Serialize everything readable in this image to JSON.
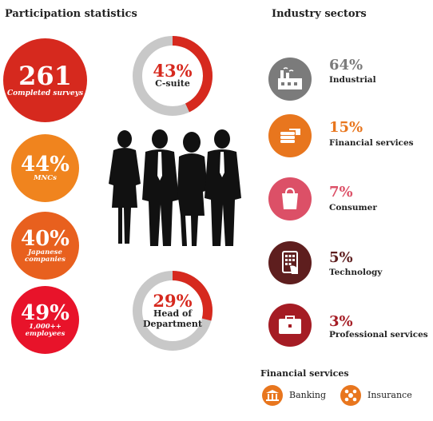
{
  "participation": {
    "title": "Participation statistics",
    "completed": {
      "value": "261",
      "label": "Completed surveys",
      "color": "#d6291e"
    },
    "mncs": {
      "value": "44%",
      "label": "MNCs",
      "color": "#f0841e"
    },
    "japanese": {
      "value": "40%",
      "label_line1": "Japanese",
      "label_line2": "companies",
      "color": "#e8601e"
    },
    "employees": {
      "value": "49%",
      "label_line1": "1,000++",
      "label_line2": "employees",
      "color": "#e8132a"
    },
    "csuite": {
      "value": "43%",
      "label": "C-suite",
      "fraction": 0.43
    },
    "head": {
      "value": "29%",
      "label_line1": "Head of",
      "label_line2": "Department",
      "fraction": 0.29
    }
  },
  "industry": {
    "title": "Industry sectors",
    "sectors": [
      {
        "pct": "64%",
        "name": "Industrial",
        "icon": "factory-icon",
        "color": "#7b7b7b",
        "pct_color": "#7b7b7b"
      },
      {
        "pct": "15%",
        "name": "Financial services",
        "icon": "coins-icon",
        "color": "#e8761e",
        "pct_color": "#e8761e"
      },
      {
        "pct": "7%",
        "name": "Consumer",
        "icon": "shopping-bag-icon",
        "color": "#dc5067",
        "pct_color": "#dc5067"
      },
      {
        "pct": "5%",
        "name": "Technology",
        "icon": "tablet-icon",
        "color": "#5e1e1e",
        "pct_color": "#5e1e1e"
      },
      {
        "pct": "3%",
        "name": "Professional services",
        "icon": "briefcase-icon",
        "color": "#a51c24",
        "pct_color": "#a51c24"
      }
    ]
  },
  "financial_services": {
    "title": "Financial services",
    "items": [
      {
        "label": "Banking",
        "icon": "bank-icon"
      },
      {
        "label": "Insurance",
        "icon": "umbrella-icon"
      }
    ]
  },
  "colors": {
    "donut_accent": "#d6291e",
    "donut_track": "#c8c8c8"
  }
}
